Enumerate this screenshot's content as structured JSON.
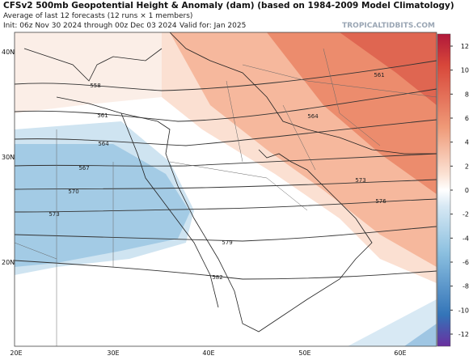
{
  "header": {
    "title": "CFSv2 500mb Geopotential Height & Anomaly (dam) (based on 1984-2009 Model Climatology)",
    "subtitle": "Average of last 12 forecasts (12 runs × 1 members)",
    "init": "Init: 06z Nov 30 2024 through 00z Dec 03 2024",
    "valid": "Valid for: Jan 2025",
    "watermark": "TROPICALTIDBITS.COM"
  },
  "map": {
    "lat_labels": [
      "40N",
      "30N",
      "20N"
    ],
    "lon_labels": [
      "20E",
      "30E",
      "40E",
      "50E",
      "60E"
    ],
    "contour_labels": [
      "558",
      "561",
      "564",
      "567",
      "570",
      "573",
      "579",
      "582",
      "561",
      "564",
      "573",
      "576"
    ]
  },
  "colorbar": {
    "ticks": [
      12,
      10,
      8,
      6,
      4,
      2,
      0,
      -2,
      -4,
      -6,
      -8,
      -10,
      -12
    ]
  }
}
